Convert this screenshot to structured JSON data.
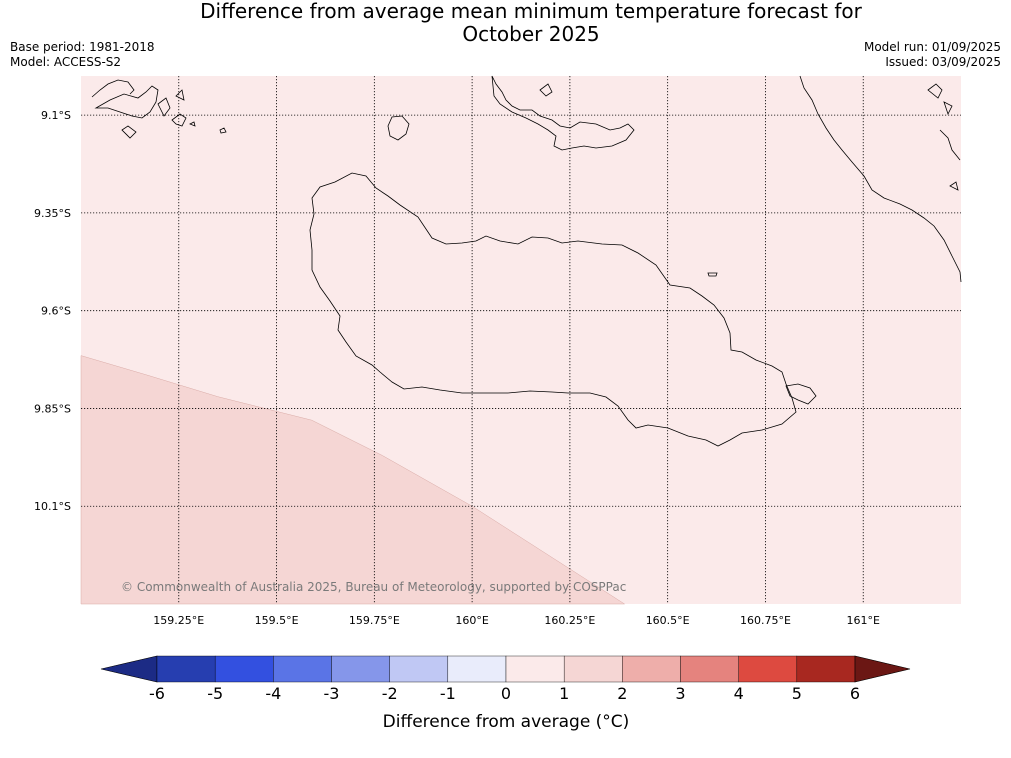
{
  "title_line1": "Difference from average mean minimum temperature forecast for",
  "title_line2": "October 2025",
  "meta_left": [
    "Base period: 1981-2018",
    "Model: ACCESS-S2"
  ],
  "meta_right": [
    "Model run: 01/09/2025",
    "Issued: 03/09/2025"
  ],
  "map": {
    "lon_range": [
      159.0,
      161.25
    ],
    "lat_range": [
      -10.35,
      -9.0
    ],
    "lon_ticks": [
      {
        "value": 159.25,
        "label": "159.25°E"
      },
      {
        "value": 159.5,
        "label": "159.5°E"
      },
      {
        "value": 159.75,
        "label": "159.75°E"
      },
      {
        "value": 160.0,
        "label": "160°E"
      },
      {
        "value": 160.25,
        "label": "160.25°E"
      },
      {
        "value": 160.5,
        "label": "160.5°E"
      },
      {
        "value": 160.75,
        "label": "160.75°E"
      },
      {
        "value": 161.0,
        "label": "161°E"
      }
    ],
    "lat_ticks": [
      {
        "value": -9.1,
        "label": "9.1°S"
      },
      {
        "value": -9.35,
        "label": "9.35°S"
      },
      {
        "value": -9.6,
        "label": "9.6°S"
      },
      {
        "value": -9.85,
        "label": "9.85°S"
      },
      {
        "value": -10.1,
        "label": "10.1°S"
      }
    ],
    "background_category": "0 to 1",
    "background_color": "#fbeaea",
    "region_1_to_2": {
      "color": "#f5d6d4",
      "boundary": [
        [
          159.0,
          -9.715
        ],
        [
          159.17,
          -9.765
        ],
        [
          159.35,
          -9.82
        ],
        [
          159.59,
          -9.88
        ],
        [
          159.77,
          -9.97
        ],
        [
          160.0,
          -10.1
        ],
        [
          160.39,
          -10.35
        ],
        [
          159.0,
          -10.35
        ]
      ]
    },
    "copyright": "© Commonwealth of Australia 2025, Bureau of Meteorology, supported by COSPPac"
  },
  "colorbar": {
    "title": "Difference from average (°C)",
    "colors": [
      "#1c2b85",
      "#263eb0",
      "#3350e0",
      "#5a74e6",
      "#8596ea",
      "#c0c8f4",
      "#e9ecfb",
      "#fbeaea",
      "#f5d6d4",
      "#eeaeaa",
      "#e5837e",
      "#dd4a40",
      "#a82820",
      "#6b1714"
    ],
    "labels": [
      "-6",
      "-5",
      "-4",
      "-3",
      "-2",
      "-1",
      "0",
      "1",
      "2",
      "3",
      "4",
      "5",
      "6"
    ]
  }
}
